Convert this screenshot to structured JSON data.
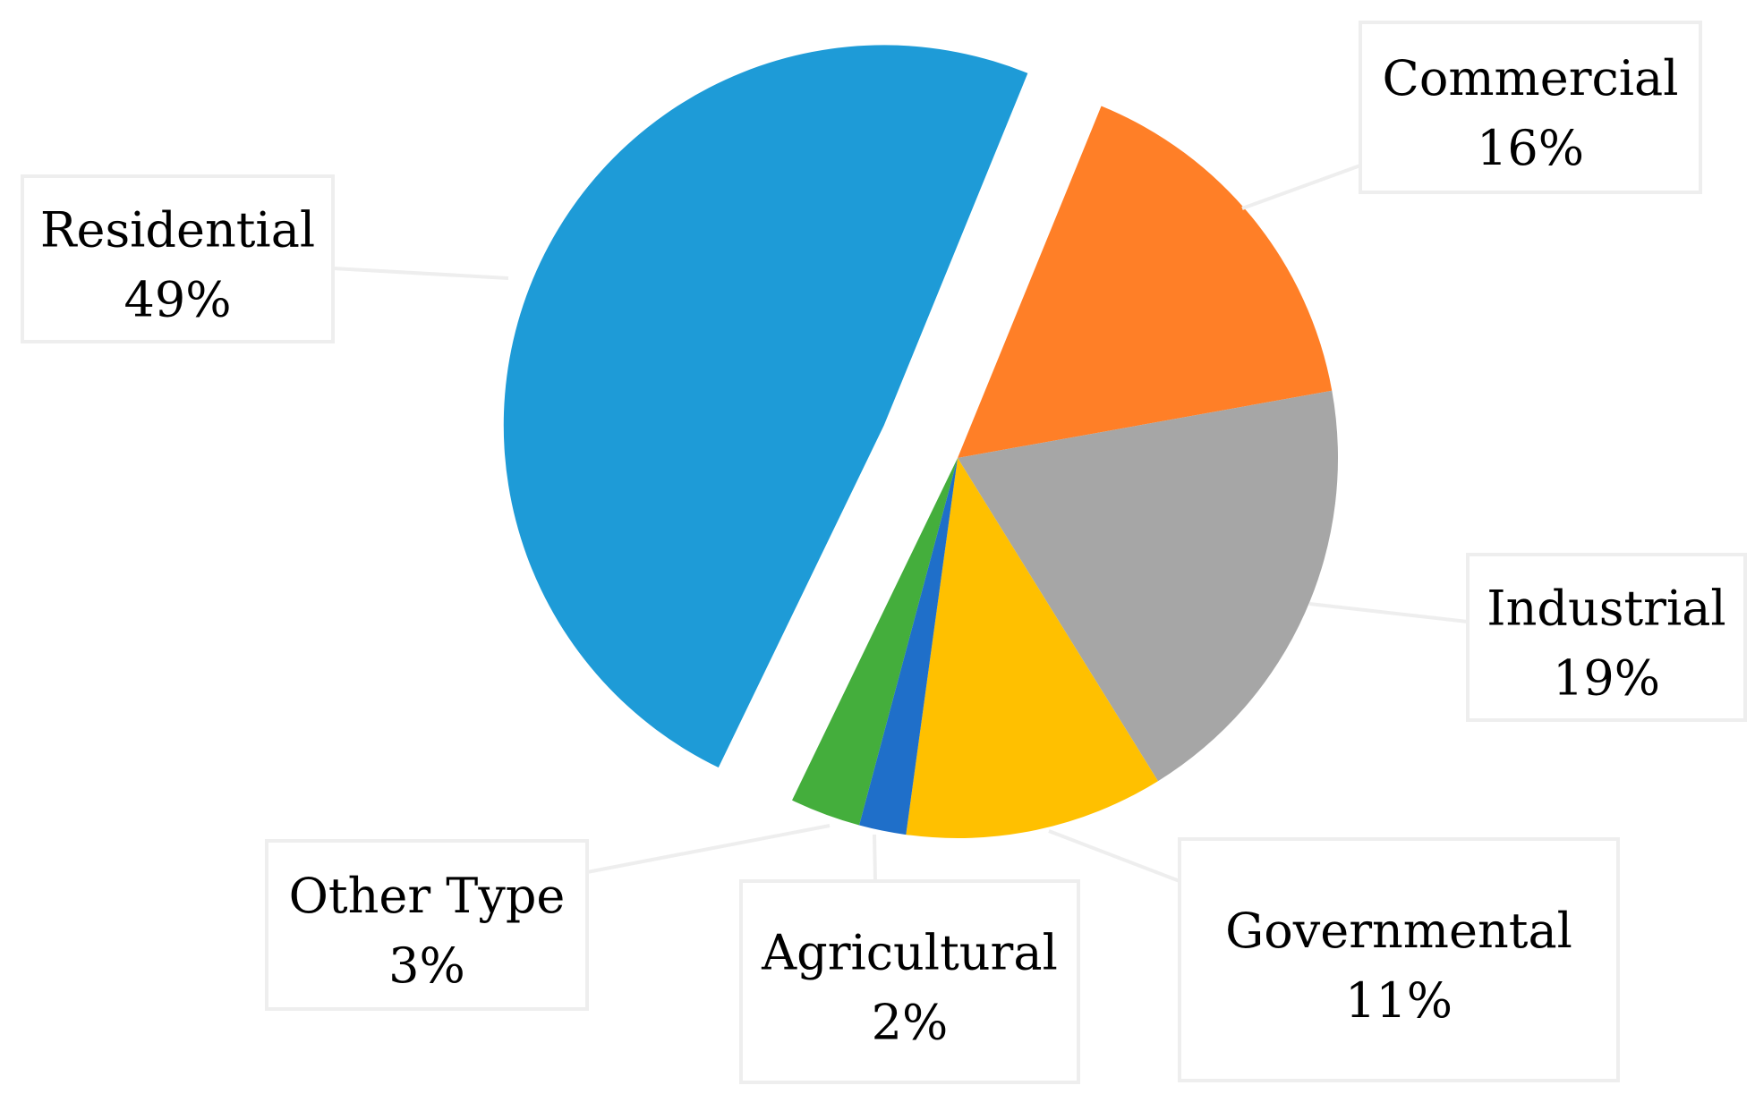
{
  "chart_data": {
    "type": "pie",
    "categories": [
      "Commercial",
      "Industrial",
      "Governmental",
      "Agricultural",
      "Other Type",
      "Residential"
    ],
    "values": [
      16,
      19,
      11,
      2,
      3,
      49
    ],
    "value_labels": [
      "16%",
      "19%",
      "11%",
      "2%",
      "3%",
      "49%"
    ],
    "colors": [
      "#FF7F27",
      "#A6A6A6",
      "#FFC000",
      "#1F6FC9",
      "#44AE3C",
      "#1E9BD7"
    ],
    "exploded": [
      "Residential"
    ],
    "legend": "none",
    "title": ""
  }
}
